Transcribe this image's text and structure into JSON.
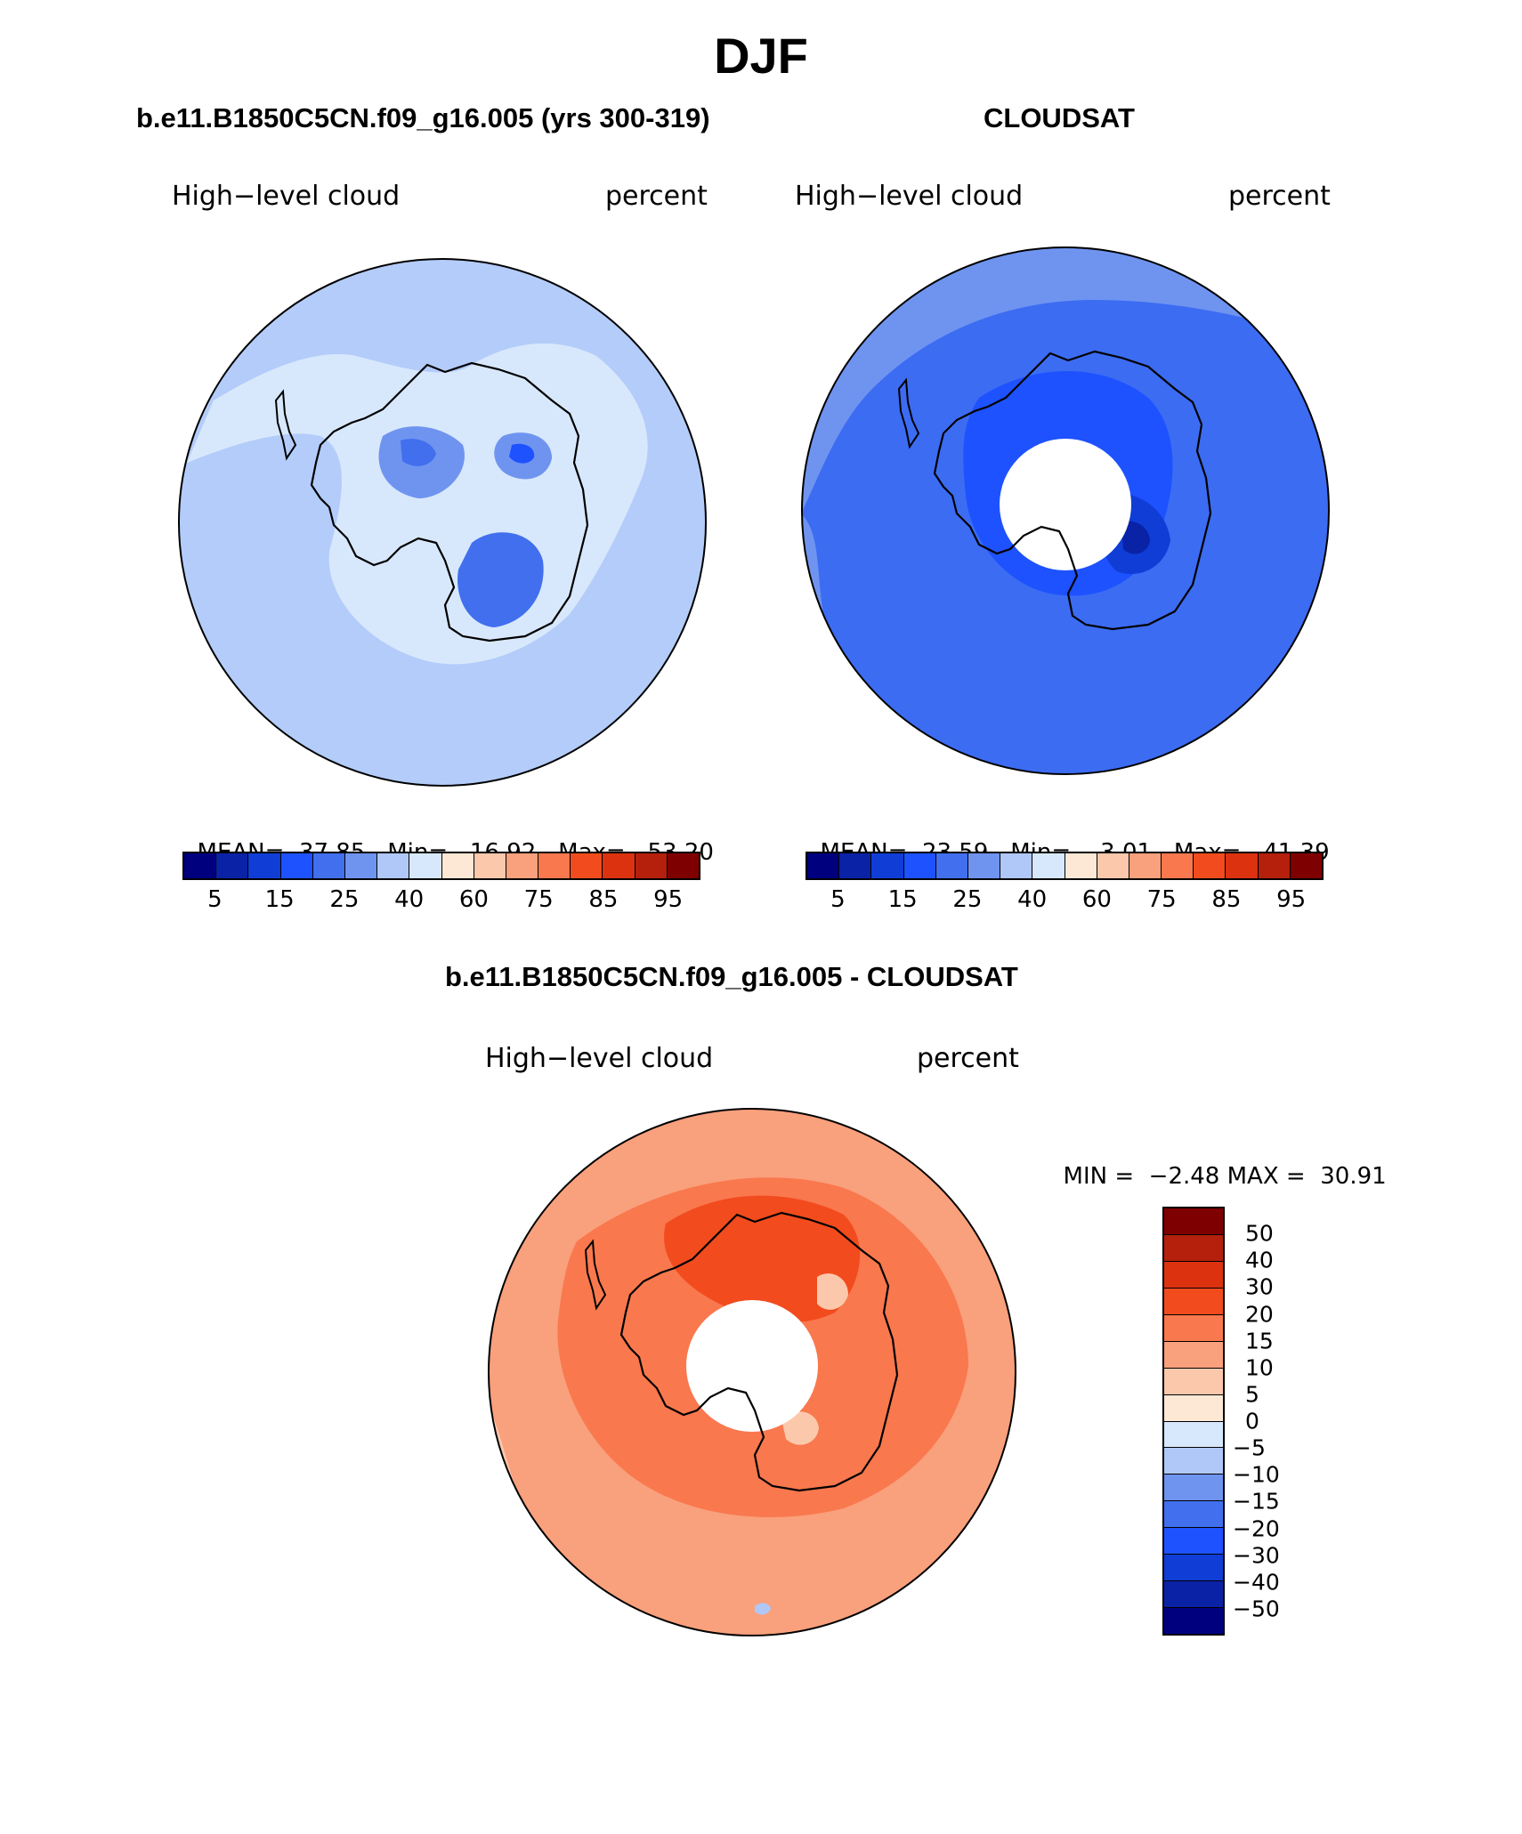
{
  "figure": {
    "season": "DJF"
  },
  "panels": [
    {
      "id": "model",
      "title": "b.e11.B1850C5CN.f09_g16.005 (yrs 300-319)",
      "variable": "High−level cloud",
      "units": "percent",
      "stats": {
        "mean_label": "MEAN=",
        "mean": "37.85",
        "min_label": "Min=",
        "min": "16.92",
        "max_label": "Max=",
        "max": "53.20"
      },
      "background": "#b4ccfa",
      "has_polar_hole": false
    },
    {
      "id": "obs",
      "title": "CLOUDSAT",
      "variable": "High−level cloud",
      "units": "percent",
      "stats": {
        "mean_label": "MEAN=",
        "mean": "23.59",
        "min_label": "Min=",
        "min": "3.01",
        "max_label": "Max=",
        "max": "41.39"
      },
      "background": "#3c6cf2",
      "has_polar_hole": true
    }
  ],
  "abs_colorbar": {
    "colors": [
      "#00007f",
      "#0a22a6",
      "#0f3dd6",
      "#1e52ff",
      "#416fee",
      "#6f94f0",
      "#b0c8f8",
      "#d8e8fc",
      "#fde8d6",
      "#fcc8ac",
      "#f9a07c",
      "#f9784e",
      "#f24b1e",
      "#dc3210",
      "#b4200c",
      "#7f0000"
    ],
    "tick_labels": [
      "5",
      "15",
      "25",
      "40",
      "60",
      "75",
      "85",
      "95"
    ]
  },
  "diff_panel": {
    "title": "b.e11.B1850C5CN.f09_g16.005 - CLOUDSAT",
    "variable": "High−level cloud",
    "units": "percent",
    "stats": {
      "min_label": "MIN =",
      "min": "−2.48",
      "max_label": "MAX =",
      "max": "30.91"
    },
    "background": "#f9a07c",
    "has_polar_hole": true
  },
  "diff_colorbar": {
    "colors_top_to_bottom": [
      "#7f0000",
      "#b4200c",
      "#dc3210",
      "#f24b1e",
      "#f9784e",
      "#f9a07c",
      "#fcc8ac",
      "#fde8d6",
      "#d8e8fc",
      "#b0c8f8",
      "#6f94f0",
      "#416fee",
      "#1e52ff",
      "#0f3dd6",
      "#0a22a6",
      "#00007f"
    ],
    "labels_top_to_bottom": [
      "50",
      "40",
      "30",
      "20",
      "15",
      "10",
      "5",
      "0",
      "−5",
      "−10",
      "−15",
      "−20",
      "−30",
      "−40",
      "−50"
    ]
  }
}
